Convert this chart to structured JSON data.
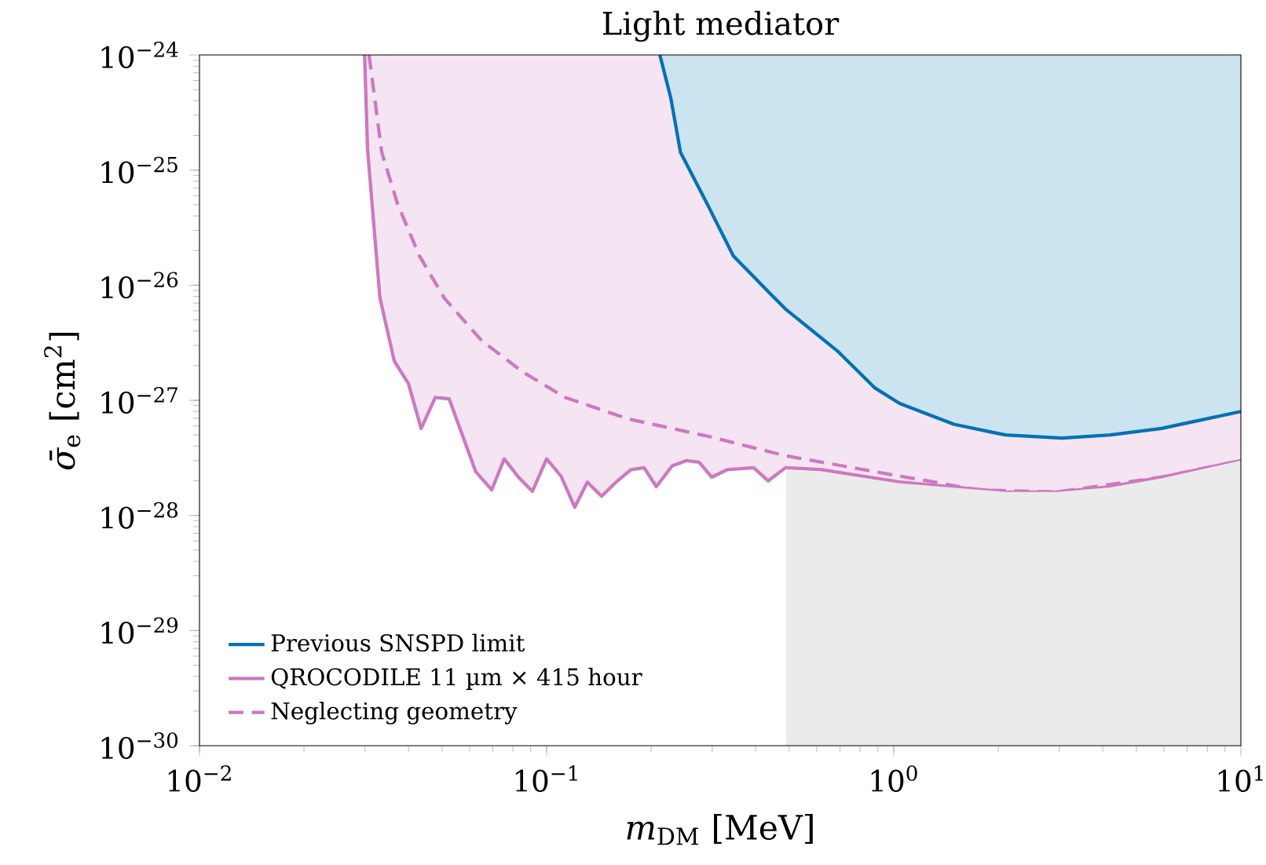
{
  "chart_data": {
    "type": "line",
    "title": "Light mediator",
    "xlabel": "*m*$_{DM}$ [MeV]",
    "ylabel": "*σ̄*$_{e}$ [cm$^{2}$]",
    "log": "xy",
    "xlim": [
      0.01,
      10
    ],
    "ylim": [
      1e-30,
      1e-24
    ],
    "xticks": [
      {
        "value": 0.01,
        "label": "10$^{−2}$"
      },
      {
        "value": 0.1,
        "label": "10$^{−1}$"
      },
      {
        "value": 1,
        "label": "10$^{0}$"
      },
      {
        "value": 10,
        "label": "10$^{1}$"
      }
    ],
    "yticks": [
      {
        "value": 1e-30,
        "label": "10$^{−30}$"
      },
      {
        "value": 1e-29,
        "label": "10$^{−29}$"
      },
      {
        "value": 1e-28,
        "label": "10$^{−28}$"
      },
      {
        "value": 1e-27,
        "label": "10$^{−27}$"
      },
      {
        "value": 1e-26,
        "label": "10$^{−26}$"
      },
      {
        "value": 1e-25,
        "label": "10$^{−25}$"
      },
      {
        "value": 1e-24,
        "label": "10$^{−24}$"
      }
    ],
    "legend": "bottom left",
    "marker": "none",
    "series": [
      {
        "name": "Previous SNSPD limit",
        "color": "#0072b2",
        "line_style": "solid",
        "x": [
          0.212,
          0.228,
          0.243,
          0.29,
          0.345,
          0.44,
          0.488,
          0.687,
          0.88,
          1.04,
          1.49,
          2.1,
          3.05,
          4.2,
          5.9,
          10
        ],
        "values": [
          1e-24,
          4.2e-25,
          1.43e-25,
          5.1e-26,
          1.8e-26,
          8.5e-27,
          6.2e-27,
          2.7e-27,
          1.29e-27,
          9.4e-28,
          6.2e-28,
          5e-28,
          4.7e-28,
          5e-28,
          5.7e-28,
          8e-28
        ],
        "lower": [
          1e-24,
          4.2e-25,
          1.43e-25,
          5.1e-26,
          1.8e-26,
          8.5e-27,
          6.2e-27,
          2.7e-27,
          1.29e-27,
          9.4e-28,
          6.2e-28,
          5e-28,
          4.7e-28,
          5e-28,
          5.7e-28,
          8e-28
        ],
        "upper": [
          1e-24,
          1e-24,
          1e-24,
          1e-24,
          1e-24,
          1e-24,
          1e-24,
          1e-24,
          1e-24,
          1e-24,
          1e-24,
          1e-24,
          1e-24,
          1e-24,
          1e-24,
          1e-24
        ]
      },
      {
        "name": "QROCODILE 11 µm × 415 hour",
        "color": "#cc79c0",
        "line_style": "solid",
        "x": [
          0.0299,
          0.0305,
          0.0331,
          0.0364,
          0.04,
          0.0435,
          0.0478,
          0.0524,
          0.0625,
          0.0695,
          0.0755,
          0.083,
          0.091,
          0.1,
          0.11,
          0.1205,
          0.131,
          0.144,
          0.16,
          0.175,
          0.191,
          0.207,
          0.23,
          0.253,
          0.275,
          0.299,
          0.331,
          0.395,
          0.435,
          0.488,
          0.62,
          1.04,
          2.1,
          2.95,
          4.2,
          5.9,
          10
        ],
        "values": [
          1e-24,
          1.5e-25,
          7.8e-27,
          2.2e-27,
          1.4e-27,
          5.7e-28,
          1.06e-27,
          1.03e-27,
          2.4e-28,
          1.67e-28,
          3.1e-28,
          2.15e-28,
          1.62e-28,
          3.1e-28,
          2.2e-28,
          1.18e-28,
          1.95e-28,
          1.47e-28,
          2e-28,
          2.5e-28,
          2.6e-28,
          1.78e-28,
          2.7e-28,
          3e-28,
          2.9e-28,
          2.15e-28,
          2.5e-28,
          2.6e-28,
          2e-28,
          2.6e-28,
          2.5e-28,
          1.95e-28,
          1.6e-28,
          1.6e-28,
          1.78e-28,
          2.15e-28,
          3e-28
        ],
        "lower": [
          1e-24,
          1.5e-25,
          7.8e-27,
          2.2e-27,
          1.4e-27,
          5.7e-28,
          1.06e-27,
          1.03e-27,
          2.4e-28,
          1.67e-28,
          3.1e-28,
          2.15e-28,
          1.62e-28,
          3.1e-28,
          2.2e-28,
          1.18e-28,
          1.95e-28,
          1.47e-28,
          2e-28,
          2.5e-28,
          2.6e-28,
          1.78e-28,
          2.7e-28,
          3e-28,
          2.9e-28,
          2.15e-28,
          2.5e-28,
          2.6e-28,
          2e-28,
          2.6e-28,
          2.5e-28,
          1.95e-28,
          1.6e-28,
          1.6e-28,
          1.78e-28,
          2.15e-28,
          3e-28
        ],
        "upper": [
          1e-24,
          1e-24,
          1e-24,
          1e-24,
          1e-24,
          1e-24,
          1e-24,
          1e-24,
          1e-24,
          1e-24,
          1e-24,
          1e-24,
          1e-24,
          1e-24,
          1e-24,
          1e-24,
          1e-24,
          1e-24,
          1e-24,
          1e-24,
          1e-24,
          1e-24,
          1e-24,
          1e-24,
          1e-24,
          1e-24,
          1e-24,
          1e-24,
          1e-24,
          1e-24,
          1e-24,
          1e-24,
          1e-24,
          1e-24,
          1e-24,
          1e-24,
          1e-24
        ]
      },
      {
        "name": "Neglecting geometry",
        "color": "#cc79c0",
        "line_style": "dashed",
        "x": [
          0.0308,
          0.0335,
          0.0372,
          0.043,
          0.0508,
          0.065,
          0.0855,
          0.113,
          0.172,
          0.29,
          0.488,
          1.04,
          1.75,
          2.95,
          5.9,
          10
        ],
        "values": [
          1e-24,
          1.43e-25,
          5.1e-26,
          1.8e-26,
          7.7e-27,
          3.3e-27,
          1.76e-27,
          1.06e-27,
          6.9e-28,
          4.9e-28,
          3.3e-28,
          2.2e-28,
          1.67e-28,
          1.6e-28,
          2.15e-28,
          3e-28
        ]
      },
      {
        "type": "area",
        "color": "#ebebeb",
        "x": [
          0.49,
          0.62,
          1.04,
          2.1,
          2.95,
          4.2,
          5.9,
          10
        ],
        "values": [
          2.5e-28,
          2.4e-28,
          1.9e-28,
          1.6e-28,
          1.6e-28,
          1.75e-28,
          2.1e-28,
          3e-28
        ]
      }
    ]
  }
}
